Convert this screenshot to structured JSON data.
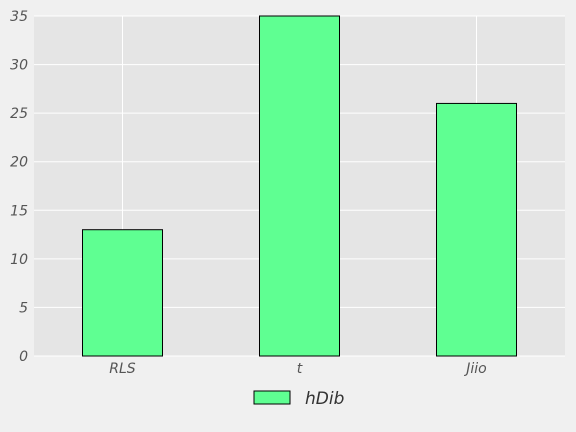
{
  "chart_data": {
    "type": "bar",
    "categories": [
      "RLS",
      "t",
      "Jiio"
    ],
    "series": [
      {
        "name": "hDib",
        "values": [
          13,
          35,
          26
        ],
        "color": "#5fff92"
      }
    ],
    "ylim": [
      0,
      35
    ],
    "yticks": [
      0,
      5,
      10,
      15,
      20,
      25,
      30,
      35
    ],
    "grid": true,
    "legend_position": "bottom-center",
    "title": "",
    "xlabel": "",
    "ylabel": "",
    "colors": {
      "plot_background": "#e5e5e5",
      "page_background": "#f0f0f0",
      "grid": "#ffffff",
      "bar_edge": "#000000"
    }
  }
}
